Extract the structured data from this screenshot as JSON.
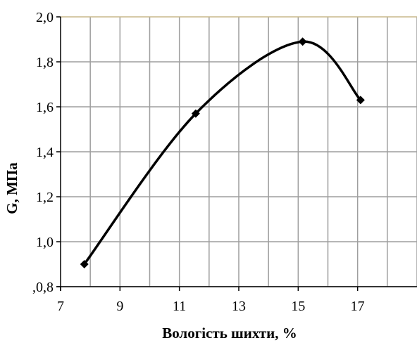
{
  "chart_data": {
    "type": "line",
    "title": "",
    "xlabel": "Вологість шихти, %",
    "ylabel": "G, МПа",
    "xlim": [
      7,
      19
    ],
    "ylim": [
      0.8,
      2.0
    ],
    "x_ticks": [
      7,
      9,
      11,
      13,
      15,
      17
    ],
    "x_tick_labels": [
      "7",
      "9",
      "11",
      "13",
      "15",
      "17"
    ],
    "y_ticks": [
      0.8,
      1.0,
      1.2,
      1.4,
      1.6,
      1.8,
      2.0
    ],
    "y_tick_labels": [
      ",0,8",
      "1,0",
      "1,2",
      "1,4",
      "1,6",
      "1,8",
      "2,0"
    ],
    "grid": true,
    "legend": "none",
    "smooth": true,
    "series": [
      {
        "x": [
          7.8,
          11.55,
          15.15,
          17.1
        ],
        "y": [
          0.9,
          1.57,
          1.89,
          1.63
        ],
        "marker": "diamond",
        "color": "#000000"
      }
    ],
    "colors": {
      "grid": "#9e9e9e",
      "top_border": "#c8b98a",
      "line": "#000000"
    }
  }
}
